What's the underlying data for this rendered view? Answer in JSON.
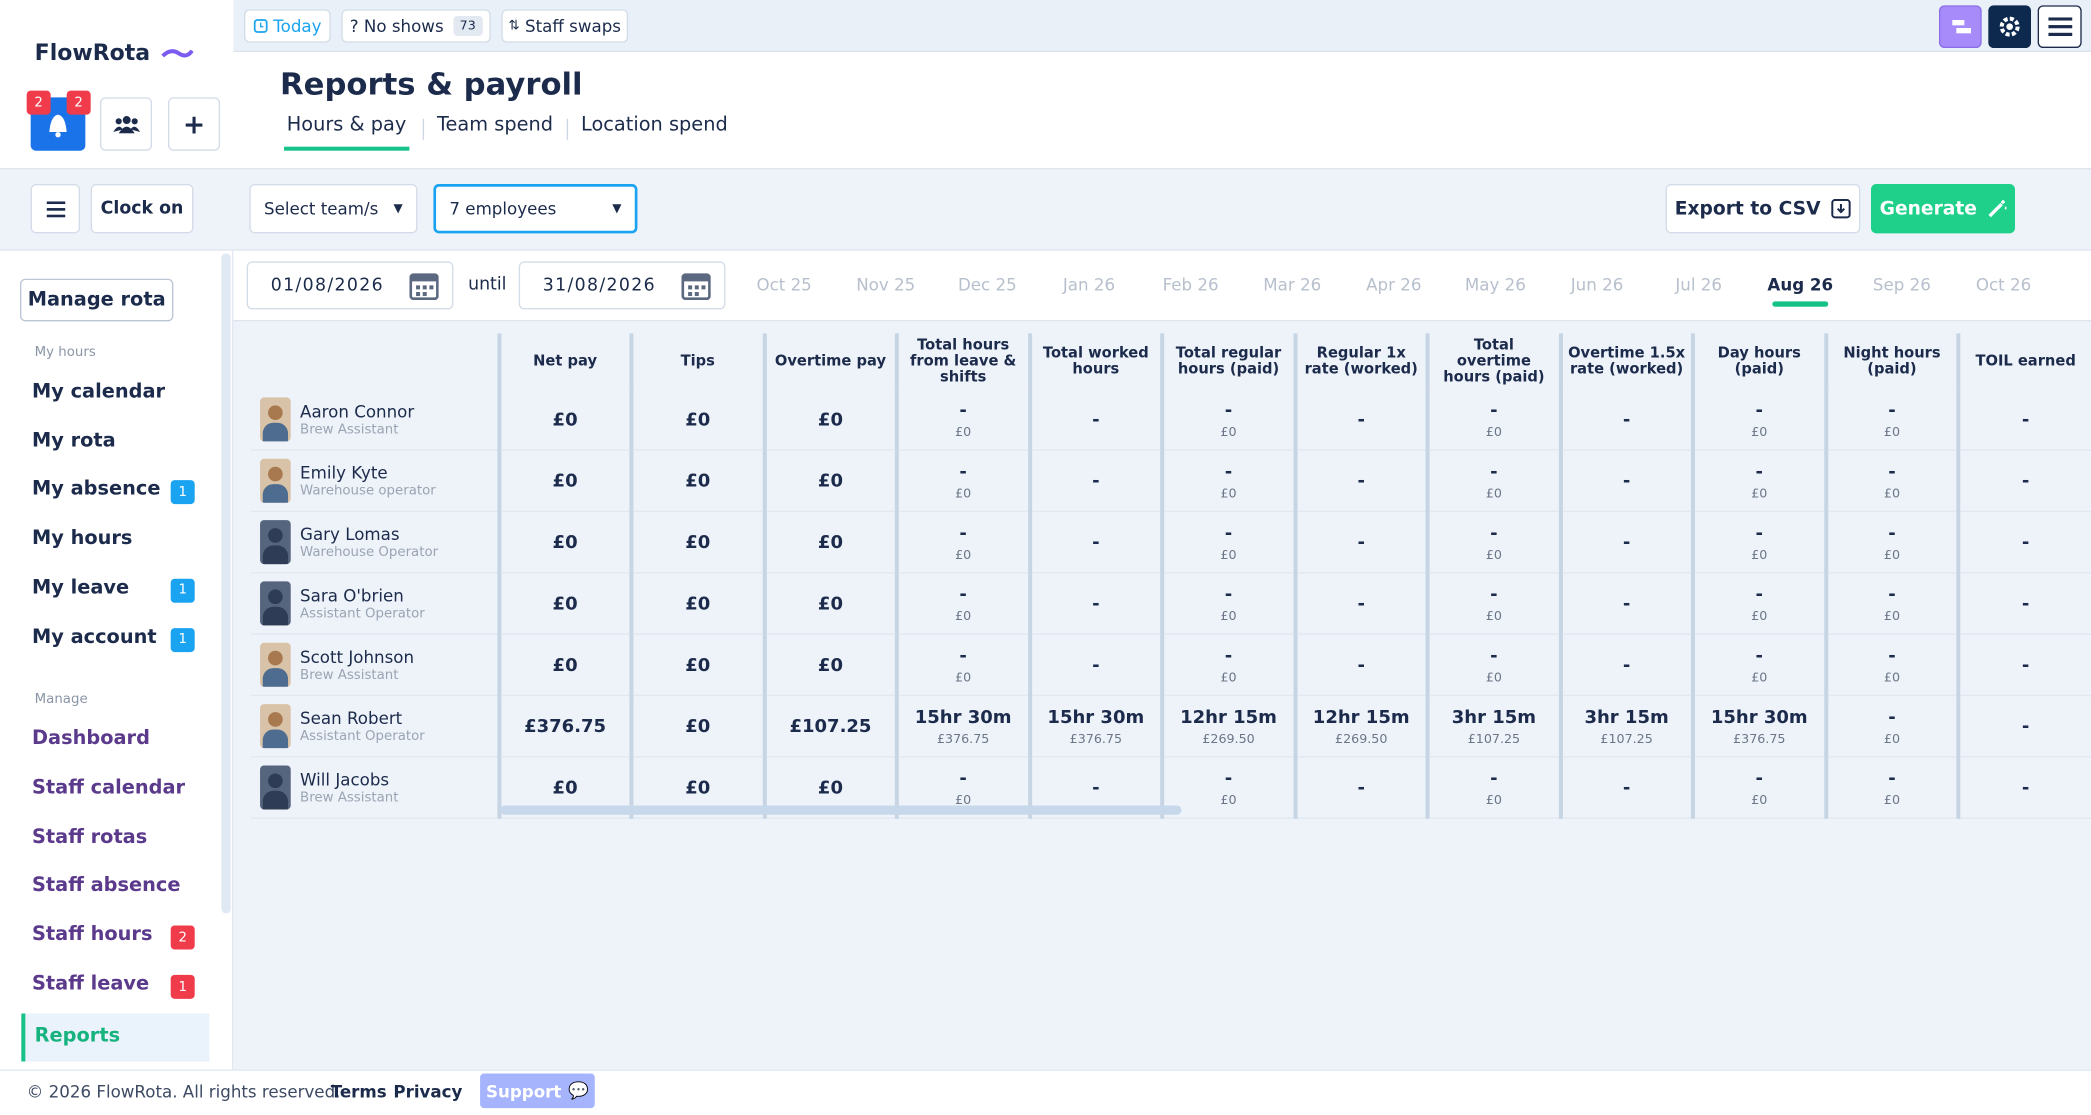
{
  "brand": "FlowRota",
  "notification_badges": [
    "2",
    "2"
  ],
  "topbar": {
    "today": "Today",
    "no_shows": "No shows",
    "no_shows_count": "73",
    "staff_swaps": "Staff swaps"
  },
  "header": {
    "title": "Reports & payroll",
    "tabs": [
      "Hours & pay",
      "Team spend",
      "Location spend"
    ]
  },
  "toolbar": {
    "clock_on": "Clock on",
    "team_select": "Select team/s",
    "employee_select": "7 employees",
    "export": "Export to CSV",
    "generate": "Generate"
  },
  "dates": {
    "from": "01/08/2026",
    "until": "until",
    "to": "31/08/2026",
    "months": [
      {
        "label": "Oct 25",
        "selected": false
      },
      {
        "label": "Nov 25",
        "selected": false
      },
      {
        "label": "Dec 25",
        "selected": false
      },
      {
        "label": "Jan 26",
        "selected": false
      },
      {
        "label": "Feb 26",
        "selected": false
      },
      {
        "label": "Mar 26",
        "selected": false
      },
      {
        "label": "Apr 26",
        "selected": false
      },
      {
        "label": "May 26",
        "selected": false
      },
      {
        "label": "Jun 26",
        "selected": false
      },
      {
        "label": "Jul 26",
        "selected": false
      },
      {
        "label": "Aug 26",
        "selected": true
      },
      {
        "label": "Sep 26",
        "selected": false
      },
      {
        "label": "Oct 26",
        "selected": false
      }
    ]
  },
  "sidebar": {
    "manage_rota": "Manage rota",
    "my_hours_heading": "My hours",
    "my_items": [
      {
        "label": "My calendar"
      },
      {
        "label": "My rota"
      },
      {
        "label": "My absence",
        "badge": "1"
      },
      {
        "label": "My hours"
      },
      {
        "label": "My leave",
        "badge": "1"
      },
      {
        "label": "My account",
        "badge": "1"
      }
    ],
    "manage_heading": "Manage",
    "manage_items": [
      {
        "label": "Dashboard"
      },
      {
        "label": "Staff calendar"
      },
      {
        "label": "Staff rotas"
      },
      {
        "label": "Staff absence"
      },
      {
        "label": "Staff hours",
        "badge": "2"
      },
      {
        "label": "Staff leave",
        "badge": "1"
      }
    ],
    "reports": "Reports"
  },
  "table": {
    "columns": [
      "Net pay",
      "Tips",
      "Overtime pay",
      "Total hours from leave & shifts",
      "Total worked hours",
      "Total regular hours (paid)",
      "Regular 1x rate (worked)",
      "Total overtime hours (paid)",
      "Overtime 1.5x rate (worked)",
      "Day hours (paid)",
      "Night hours (paid)",
      "TOIL earned"
    ],
    "rows": [
      {
        "name": "Aaron Connor",
        "role": "Brew Assistant",
        "photo": true,
        "cells": [
          {
            "main": "£0"
          },
          {
            "main": "£0"
          },
          {
            "main": "£0"
          },
          {
            "main": "-",
            "sub": "£0"
          },
          {
            "main": "-"
          },
          {
            "main": "-",
            "sub": "£0"
          },
          {
            "main": "-"
          },
          {
            "main": "-",
            "sub": "£0"
          },
          {
            "main": "-"
          },
          {
            "main": "-",
            "sub": "£0"
          },
          {
            "main": "-",
            "sub": "£0"
          },
          {
            "main": "-"
          }
        ]
      },
      {
        "name": "Emily Kyte",
        "role": "Warehouse operator",
        "photo": true,
        "cells": [
          {
            "main": "£0"
          },
          {
            "main": "£0"
          },
          {
            "main": "£0"
          },
          {
            "main": "-",
            "sub": "£0"
          },
          {
            "main": "-"
          },
          {
            "main": "-",
            "sub": "£0"
          },
          {
            "main": "-"
          },
          {
            "main": "-",
            "sub": "£0"
          },
          {
            "main": "-"
          },
          {
            "main": "-",
            "sub": "£0"
          },
          {
            "main": "-",
            "sub": "£0"
          },
          {
            "main": "-"
          }
        ]
      },
      {
        "name": "Gary Lomas",
        "role": "Warehouse Operator",
        "photo": false,
        "cells": [
          {
            "main": "£0"
          },
          {
            "main": "£0"
          },
          {
            "main": "£0"
          },
          {
            "main": "-",
            "sub": "£0"
          },
          {
            "main": "-"
          },
          {
            "main": "-",
            "sub": "£0"
          },
          {
            "main": "-"
          },
          {
            "main": "-",
            "sub": "£0"
          },
          {
            "main": "-"
          },
          {
            "main": "-",
            "sub": "£0"
          },
          {
            "main": "-",
            "sub": "£0"
          },
          {
            "main": "-"
          }
        ]
      },
      {
        "name": "Sara O'brien",
        "role": "Assistant Operator",
        "photo": false,
        "cells": [
          {
            "main": "£0"
          },
          {
            "main": "£0"
          },
          {
            "main": "£0"
          },
          {
            "main": "-",
            "sub": "£0"
          },
          {
            "main": "-"
          },
          {
            "main": "-",
            "sub": "£0"
          },
          {
            "main": "-"
          },
          {
            "main": "-",
            "sub": "£0"
          },
          {
            "main": "-"
          },
          {
            "main": "-",
            "sub": "£0"
          },
          {
            "main": "-",
            "sub": "£0"
          },
          {
            "main": "-"
          }
        ]
      },
      {
        "name": "Scott Johnson",
        "role": "Brew Assistant",
        "photo": true,
        "cells": [
          {
            "main": "£0"
          },
          {
            "main": "£0"
          },
          {
            "main": "£0"
          },
          {
            "main": "-",
            "sub": "£0"
          },
          {
            "main": "-"
          },
          {
            "main": "-",
            "sub": "£0"
          },
          {
            "main": "-"
          },
          {
            "main": "-",
            "sub": "£0"
          },
          {
            "main": "-"
          },
          {
            "main": "-",
            "sub": "£0"
          },
          {
            "main": "-",
            "sub": "£0"
          },
          {
            "main": "-"
          }
        ]
      },
      {
        "name": "Sean Robert",
        "role": "Assistant Operator",
        "photo": true,
        "cells": [
          {
            "main": "£376.75"
          },
          {
            "main": "£0"
          },
          {
            "main": "£107.25"
          },
          {
            "main": "15hr 30m",
            "sub": "£376.75"
          },
          {
            "main": "15hr 30m",
            "sub": "£376.75"
          },
          {
            "main": "12hr 15m",
            "sub": "£269.50"
          },
          {
            "main": "12hr 15m",
            "sub": "£269.50"
          },
          {
            "main": "3hr 15m",
            "sub": "£107.25"
          },
          {
            "main": "3hr 15m",
            "sub": "£107.25"
          },
          {
            "main": "15hr 30m",
            "sub": "£376.75"
          },
          {
            "main": "-",
            "sub": "£0"
          },
          {
            "main": "-"
          }
        ]
      },
      {
        "name": "Will Jacobs",
        "role": "Brew Assistant",
        "photo": false,
        "cells": [
          {
            "main": "£0"
          },
          {
            "main": "£0"
          },
          {
            "main": "£0"
          },
          {
            "main": "-",
            "sub": "£0"
          },
          {
            "main": "-"
          },
          {
            "main": "-",
            "sub": "£0"
          },
          {
            "main": "-"
          },
          {
            "main": "-",
            "sub": "£0"
          },
          {
            "main": "-"
          },
          {
            "main": "-",
            "sub": "£0"
          },
          {
            "main": "-",
            "sub": "£0"
          },
          {
            "main": "-"
          }
        ]
      }
    ]
  },
  "footer": {
    "copyright": "© 2026 FlowRota. All rights reserved.",
    "terms": "Terms",
    "privacy": "Privacy",
    "support": "Support"
  }
}
